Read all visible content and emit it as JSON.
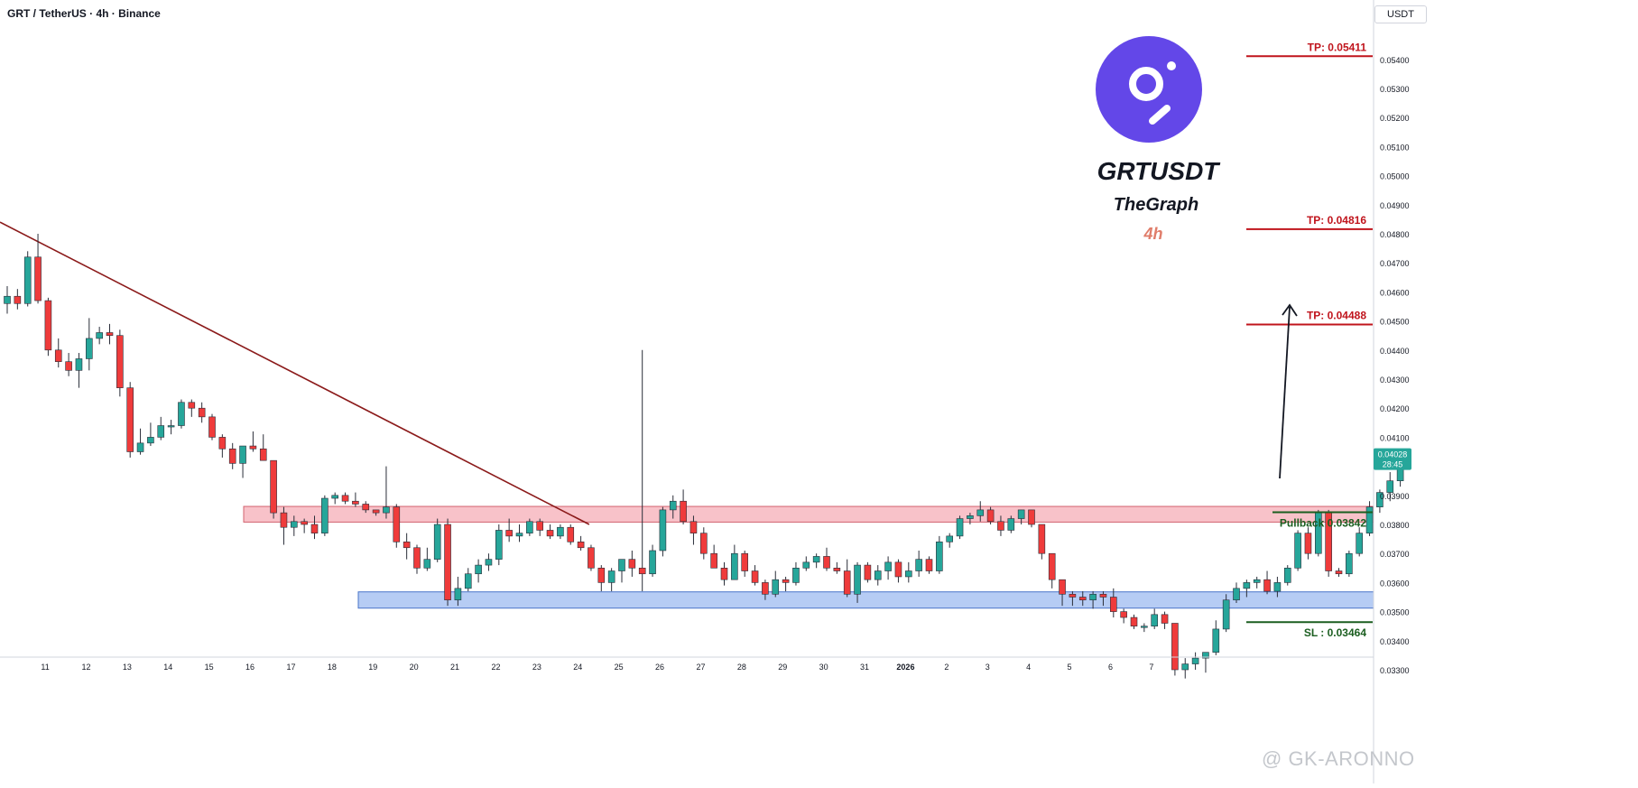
{
  "header": {
    "symbol_line": "GRT / TetherUS · 4h · Binance"
  },
  "axis": {
    "unit": "USDT"
  },
  "overlay": {
    "pair": "GRTUSDT",
    "name": "TheGraph",
    "timeframe": "4h"
  },
  "levels": [
    {
      "label": "TP: 0.05411",
      "value": 0.05411,
      "color": "#c0141c",
      "kind": "tp"
    },
    {
      "label": "TP: 0.04816",
      "value": 0.04816,
      "color": "#c0141c",
      "kind": "tp"
    },
    {
      "label": "TP: 0.04488",
      "value": 0.04488,
      "color": "#c0141c",
      "kind": "tp"
    },
    {
      "label": "Pullback 0.03842",
      "value": 0.03842,
      "color": "#1b5e20",
      "kind": "pullback"
    },
    {
      "label": "SL : 0.03464",
      "value": 0.03464,
      "color": "#1b5e20",
      "kind": "sl"
    }
  ],
  "zones": [
    {
      "kind": "resistance",
      "from": 0.03808,
      "to": 0.03862,
      "fill": "#f7b7bf",
      "stroke": "#d2636f"
    },
    {
      "kind": "support",
      "from": 0.03512,
      "to": 0.03568,
      "fill": "#a9c3f2",
      "stroke": "#4a74c9"
    }
  ],
  "trendline": {
    "from": {
      "t": 0,
      "price": 0.0484
    },
    "to": {
      "t": 45.1,
      "price": 0.038
    },
    "color": "#8b1a1a"
  },
  "current_price": {
    "value": "0.04028",
    "countdown": "28:45",
    "color": "#26a69a"
  },
  "watermark": "@ GK-ARONNO",
  "chart_data": {
    "type": "candlestick",
    "title": "GRT / TetherUS · 4h · Binance",
    "ylim": [
      0.0325,
      0.0546
    ],
    "y_ticks": [
      "0.05400",
      "0.05300",
      "0.05200",
      "0.05100",
      "0.05000",
      "0.04900",
      "0.04800",
      "0.04700",
      "0.04600",
      "0.04500",
      "0.04400",
      "0.04300",
      "0.04200",
      "0.04100",
      "0.03900",
      "0.03800",
      "0.03700",
      "0.03600",
      "0.03500",
      "0.03400",
      "0.03300"
    ],
    "x_ticks": [
      {
        "label": "11",
        "t": 3
      },
      {
        "label": "12",
        "t": 7
      },
      {
        "label": "13",
        "t": 11
      },
      {
        "label": "14",
        "t": 15
      },
      {
        "label": "15",
        "t": 19
      },
      {
        "label": "16",
        "t": 23
      },
      {
        "label": "17",
        "t": 27
      },
      {
        "label": "18",
        "t": 31
      },
      {
        "label": "19",
        "t": 35
      },
      {
        "label": "20",
        "t": 39
      },
      {
        "label": "21",
        "t": 43
      },
      {
        "label": "22",
        "t": 47
      },
      {
        "label": "23",
        "t": 51
      },
      {
        "label": "24",
        "t": 55
      },
      {
        "label": "25",
        "t": 59
      },
      {
        "label": "26",
        "t": 63
      },
      {
        "label": "27",
        "t": 67
      },
      {
        "label": "28",
        "t": 71
      },
      {
        "label": "29",
        "t": 75
      },
      {
        "label": "30",
        "t": 79
      },
      {
        "label": "31",
        "t": 83
      },
      {
        "label": "2026",
        "t": 87
      },
      {
        "label": "2",
        "t": 91
      },
      {
        "label": "3",
        "t": 95
      },
      {
        "label": "4",
        "t": 99
      },
      {
        "label": "5",
        "t": 103
      },
      {
        "label": "6",
        "t": 107
      },
      {
        "label": "7",
        "t": 111
      }
    ],
    "candles": [
      [
        0.0456,
        0.0462,
        0.04525,
        0.04585
      ],
      [
        0.04585,
        0.0461,
        0.0454,
        0.0456
      ],
      [
        0.0456,
        0.0474,
        0.0455,
        0.0472
      ],
      [
        0.0472,
        0.048,
        0.0456,
        0.0457
      ],
      [
        0.0457,
        0.0458,
        0.0438,
        0.044
      ],
      [
        0.044,
        0.0444,
        0.0434,
        0.0436
      ],
      [
        0.0436,
        0.0439,
        0.0431,
        0.0433
      ],
      [
        0.0433,
        0.0439,
        0.0427,
        0.0437
      ],
      [
        0.0437,
        0.0451,
        0.0433,
        0.0444
      ],
      [
        0.0444,
        0.0448,
        0.0442,
        0.0446
      ],
      [
        0.0446,
        0.0449,
        0.0442,
        0.0445
      ],
      [
        0.0445,
        0.0447,
        0.0424,
        0.0427
      ],
      [
        0.0427,
        0.0429,
        0.0403,
        0.0405
      ],
      [
        0.0405,
        0.0413,
        0.0404,
        0.0408
      ],
      [
        0.0408,
        0.0415,
        0.0407,
        0.041
      ],
      [
        0.041,
        0.0417,
        0.0409,
        0.0414
      ],
      [
        0.0414,
        0.0416,
        0.0411,
        0.0414
      ],
      [
        0.0414,
        0.0423,
        0.0413,
        0.0422
      ],
      [
        0.0422,
        0.0423,
        0.0417,
        0.042
      ],
      [
        0.042,
        0.0422,
        0.0415,
        0.0417
      ],
      [
        0.0417,
        0.0418,
        0.0409,
        0.041
      ],
      [
        0.041,
        0.0411,
        0.0403,
        0.0406
      ],
      [
        0.0406,
        0.0408,
        0.0399,
        0.0401
      ],
      [
        0.0401,
        0.0406,
        0.0396,
        0.0407
      ],
      [
        0.0407,
        0.0412,
        0.0405,
        0.0406
      ],
      [
        0.0406,
        0.0411,
        0.0402,
        0.0402
      ],
      [
        0.0402,
        0.0402,
        0.0382,
        0.0384
      ],
      [
        0.0384,
        0.0386,
        0.0373,
        0.0379
      ],
      [
        0.0379,
        0.0383,
        0.0376,
        0.0381
      ],
      [
        0.0381,
        0.0382,
        0.0377,
        0.038
      ],
      [
        0.038,
        0.0383,
        0.0375,
        0.0377
      ],
      [
        0.0377,
        0.039,
        0.0376,
        0.0389
      ],
      [
        0.0389,
        0.0391,
        0.0387,
        0.039
      ],
      [
        0.039,
        0.0391,
        0.0387,
        0.0388
      ],
      [
        0.0388,
        0.0391,
        0.0386,
        0.0387
      ],
      [
        0.0387,
        0.0388,
        0.0384,
        0.0385
      ],
      [
        0.0385,
        0.0385,
        0.0383,
        0.0384
      ],
      [
        0.0384,
        0.04,
        0.0382,
        0.0386
      ],
      [
        0.0386,
        0.0387,
        0.0372,
        0.0374
      ],
      [
        0.0374,
        0.0377,
        0.0368,
        0.0372
      ],
      [
        0.0372,
        0.0373,
        0.0363,
        0.0365
      ],
      [
        0.0365,
        0.0372,
        0.0364,
        0.0368
      ],
      [
        0.0368,
        0.0382,
        0.0367,
        0.038
      ],
      [
        0.038,
        0.0382,
        0.0352,
        0.0354
      ],
      [
        0.0354,
        0.0362,
        0.0352,
        0.0358
      ],
      [
        0.0358,
        0.0365,
        0.0357,
        0.0363
      ],
      [
        0.0363,
        0.0368,
        0.036,
        0.0366
      ],
      [
        0.0366,
        0.037,
        0.0364,
        0.0368
      ],
      [
        0.0368,
        0.038,
        0.0366,
        0.0378
      ],
      [
        0.0378,
        0.0382,
        0.0374,
        0.0376
      ],
      [
        0.0376,
        0.038,
        0.0374,
        0.0377
      ],
      [
        0.0377,
        0.0382,
        0.0376,
        0.0381
      ],
      [
        0.0381,
        0.0382,
        0.0376,
        0.0378
      ],
      [
        0.0378,
        0.038,
        0.0375,
        0.0376
      ],
      [
        0.0376,
        0.038,
        0.0375,
        0.0379
      ],
      [
        0.0379,
        0.038,
        0.0373,
        0.0374
      ],
      [
        0.0374,
        0.0376,
        0.0371,
        0.0372
      ],
      [
        0.0372,
        0.0373,
        0.0364,
        0.0365
      ],
      [
        0.0365,
        0.0366,
        0.0357,
        0.036
      ],
      [
        0.036,
        0.0365,
        0.0357,
        0.0364
      ],
      [
        0.0364,
        0.0367,
        0.036,
        0.0368
      ],
      [
        0.0368,
        0.0371,
        0.0362,
        0.0365
      ],
      [
        0.0365,
        0.044,
        0.0357,
        0.0363
      ],
      [
        0.0363,
        0.0373,
        0.0362,
        0.0371
      ],
      [
        0.0371,
        0.0386,
        0.0369,
        0.0385
      ],
      [
        0.0385,
        0.039,
        0.0382,
        0.0388
      ],
      [
        0.0388,
        0.0392,
        0.038,
        0.0381
      ],
      [
        0.0381,
        0.0383,
        0.0373,
        0.0377
      ],
      [
        0.0377,
        0.0379,
        0.0368,
        0.037
      ],
      [
        0.037,
        0.0373,
        0.0366,
        0.0365
      ],
      [
        0.0365,
        0.0367,
        0.0359,
        0.0361
      ],
      [
        0.0361,
        0.0373,
        0.0361,
        0.037
      ],
      [
        0.037,
        0.0371,
        0.0362,
        0.0364
      ],
      [
        0.0364,
        0.0366,
        0.0359,
        0.036
      ],
      [
        0.036,
        0.0361,
        0.0354,
        0.0356
      ],
      [
        0.0356,
        0.0364,
        0.0355,
        0.0361
      ],
      [
        0.0361,
        0.0362,
        0.0357,
        0.036
      ],
      [
        0.036,
        0.0367,
        0.0359,
        0.0365
      ],
      [
        0.0365,
        0.0369,
        0.0364,
        0.0367
      ],
      [
        0.0367,
        0.037,
        0.0365,
        0.0369
      ],
      [
        0.0369,
        0.0372,
        0.0364,
        0.0365
      ],
      [
        0.0365,
        0.0367,
        0.0363,
        0.0364
      ],
      [
        0.0364,
        0.0368,
        0.0355,
        0.0356
      ],
      [
        0.0356,
        0.0367,
        0.0353,
        0.0366
      ],
      [
        0.0366,
        0.0367,
        0.036,
        0.0361
      ],
      [
        0.0361,
        0.0366,
        0.0359,
        0.0364
      ],
      [
        0.0364,
        0.0369,
        0.0361,
        0.0367
      ],
      [
        0.0367,
        0.0368,
        0.036,
        0.0362
      ],
      [
        0.0362,
        0.0367,
        0.036,
        0.0364
      ],
      [
        0.0364,
        0.0371,
        0.0362,
        0.0368
      ],
      [
        0.0368,
        0.0369,
        0.0363,
        0.0364
      ],
      [
        0.0364,
        0.0376,
        0.0363,
        0.0374
      ],
      [
        0.0374,
        0.0377,
        0.0372,
        0.0376
      ],
      [
        0.0376,
        0.0383,
        0.0375,
        0.0382
      ],
      [
        0.0382,
        0.0384,
        0.038,
        0.0383
      ],
      [
        0.0383,
        0.0388,
        0.0381,
        0.0385
      ],
      [
        0.0385,
        0.0386,
        0.038,
        0.0381
      ],
      [
        0.0381,
        0.0383,
        0.0376,
        0.0378
      ],
      [
        0.0378,
        0.0383,
        0.0377,
        0.0382
      ],
      [
        0.0382,
        0.0385,
        0.038,
        0.0385
      ],
      [
        0.0385,
        0.0385,
        0.0379,
        0.038
      ],
      [
        0.038,
        0.038,
        0.0368,
        0.037
      ],
      [
        0.037,
        0.037,
        0.0358,
        0.0361
      ],
      [
        0.0361,
        0.0361,
        0.0352,
        0.0356
      ],
      [
        0.0356,
        0.0357,
        0.0352,
        0.0355
      ],
      [
        0.0355,
        0.0357,
        0.0352,
        0.0354
      ],
      [
        0.0354,
        0.0357,
        0.0351,
        0.0356
      ],
      [
        0.0356,
        0.0357,
        0.0352,
        0.0355
      ],
      [
        0.0355,
        0.0358,
        0.0348,
        0.035
      ],
      [
        0.035,
        0.0351,
        0.0346,
        0.0348
      ],
      [
        0.0348,
        0.0349,
        0.0344,
        0.0345
      ],
      [
        0.0345,
        0.0346,
        0.0343,
        0.0345
      ],
      [
        0.0345,
        0.0351,
        0.0344,
        0.0349
      ],
      [
        0.0349,
        0.035,
        0.0344,
        0.0346
      ],
      [
        0.0346,
        0.0346,
        0.0328,
        0.033
      ],
      [
        0.033,
        0.0334,
        0.0327,
        0.0332
      ],
      [
        0.0332,
        0.0336,
        0.033,
        0.0334
      ],
      [
        0.0334,
        0.0336,
        0.0329,
        0.0336
      ],
      [
        0.0336,
        0.0347,
        0.0335,
        0.0344
      ],
      [
        0.0344,
        0.0356,
        0.0343,
        0.0354
      ],
      [
        0.0354,
        0.036,
        0.0353,
        0.0358
      ],
      [
        0.0358,
        0.0361,
        0.0355,
        0.036
      ],
      [
        0.036,
        0.0362,
        0.0358,
        0.0361
      ],
      [
        0.0361,
        0.0364,
        0.0356,
        0.0357
      ],
      [
        0.0357,
        0.0362,
        0.0355,
        0.036
      ],
      [
        0.036,
        0.0366,
        0.0359,
        0.0365
      ],
      [
        0.0365,
        0.0378,
        0.0364,
        0.0377
      ],
      [
        0.0377,
        0.0379,
        0.0368,
        0.037
      ],
      [
        0.037,
        0.0385,
        0.0369,
        0.0384
      ],
      [
        0.0384,
        0.0385,
        0.0362,
        0.0364
      ],
      [
        0.0364,
        0.0365,
        0.0362,
        0.0363
      ],
      [
        0.0363,
        0.0371,
        0.0362,
        0.037
      ],
      [
        0.037,
        0.0379,
        0.0369,
        0.0377
      ],
      [
        0.0377,
        0.0388,
        0.0376,
        0.0386
      ],
      [
        0.0386,
        0.0392,
        0.0384,
        0.0391
      ],
      [
        0.0391,
        0.0398,
        0.0388,
        0.0395
      ],
      [
        0.0395,
        0.0405,
        0.0393,
        0.04028
      ]
    ]
  }
}
